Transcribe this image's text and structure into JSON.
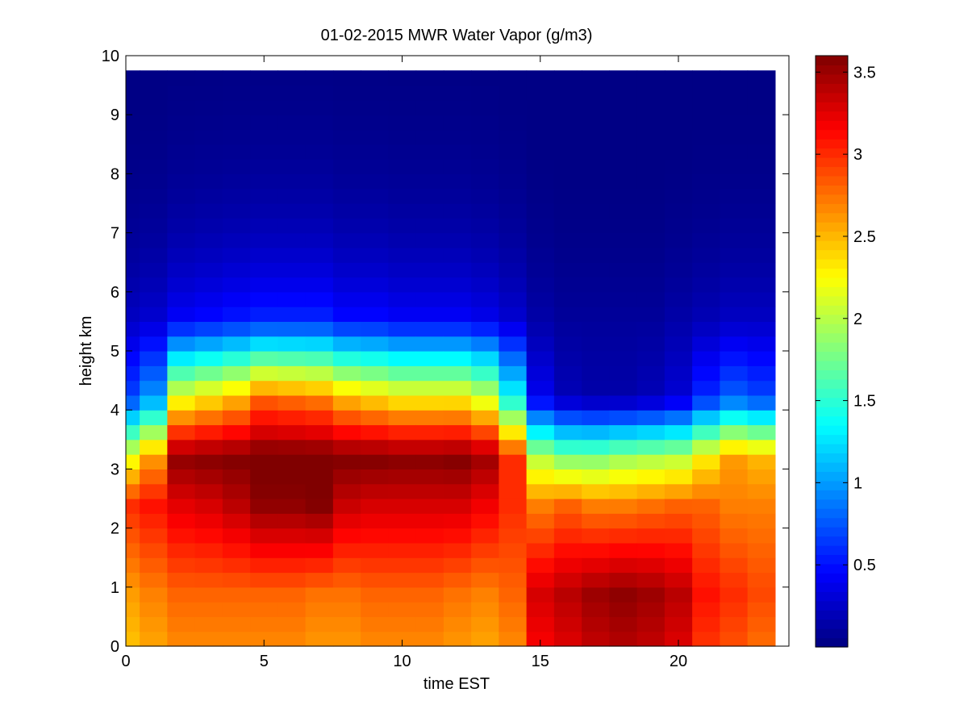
{
  "chart_data": {
    "type": "heatmap",
    "title": "01-02-2015 MWR Water Vapor (g/m3)",
    "xlabel": "time EST",
    "ylabel": "height km",
    "xlim": [
      0,
      24
    ],
    "ylim": [
      0,
      10
    ],
    "x_ticks": [
      "0",
      "5",
      "10",
      "15",
      "20"
    ],
    "y_ticks": [
      "0",
      "1",
      "2",
      "3",
      "4",
      "5",
      "6",
      "7",
      "8",
      "9",
      "10"
    ],
    "colorbar": {
      "colormap": "jet",
      "range": [
        0,
        3.6
      ],
      "tick_values": [
        0.5,
        1,
        1.5,
        2,
        2.5,
        3,
        3.5
      ],
      "tick_labels": [
        "0.5",
        "1",
        "1.5",
        "2",
        "2.5",
        "3",
        "3.5"
      ]
    },
    "hours": [
      0,
      1,
      2,
      3,
      4,
      5,
      6,
      7,
      8,
      9,
      10,
      11,
      12,
      13,
      14,
      15,
      16,
      17,
      18,
      19,
      20,
      21,
      22,
      23
    ],
    "x_cell_start": 0,
    "x_cell_end": 23.5,
    "height_start": 0,
    "height_top": 9.75,
    "height_step": 0.25,
    "hours_profile_anchors": [
      [
        0,
        2.6,
        3.0,
        2.2,
        0.7,
        0.25
      ],
      [
        1,
        2.7,
        3.1,
        2.6,
        1.0,
        0.3
      ],
      [
        2,
        2.8,
        3.25,
        3.55,
        2.2,
        0.45
      ],
      [
        3,
        2.8,
        3.3,
        3.58,
        2.35,
        0.5
      ],
      [
        4,
        2.8,
        3.4,
        3.6,
        2.5,
        0.55
      ],
      [
        5,
        2.8,
        3.55,
        3.66,
        2.8,
        0.6
      ],
      [
        6,
        2.8,
        3.55,
        3.66,
        2.75,
        0.6
      ],
      [
        7,
        2.75,
        3.6,
        3.65,
        2.7,
        0.6
      ],
      [
        8,
        2.75,
        3.35,
        3.6,
        2.5,
        0.5
      ],
      [
        9,
        2.8,
        3.3,
        3.6,
        2.4,
        0.5
      ],
      [
        10,
        2.8,
        3.3,
        3.58,
        2.3,
        0.45
      ],
      [
        11,
        2.8,
        3.3,
        3.58,
        2.3,
        0.45
      ],
      [
        12,
        2.75,
        3.3,
        3.6,
        2.3,
        0.45
      ],
      [
        13,
        2.7,
        3.2,
        3.5,
        2.1,
        0.4
      ],
      [
        14,
        2.8,
        3.0,
        3.0,
        1.4,
        0.3
      ],
      [
        15,
        3.3,
        2.7,
        2.0,
        0.4,
        0.15
      ],
      [
        16,
        3.4,
        2.8,
        1.8,
        0.2,
        0.1
      ],
      [
        17,
        3.5,
        2.7,
        1.8,
        0.15,
        0.1
      ],
      [
        18,
        3.55,
        2.7,
        1.9,
        0.15,
        0.1
      ],
      [
        19,
        3.5,
        2.75,
        1.95,
        0.2,
        0.1
      ],
      [
        20,
        3.4,
        2.8,
        2.0,
        0.3,
        0.15
      ],
      [
        21,
        3.1,
        2.8,
        2.3,
        0.6,
        0.2
      ],
      [
        22,
        3.0,
        2.7,
        2.6,
        0.8,
        0.25
      ],
      [
        23,
        2.9,
        2.7,
        2.5,
        0.7,
        0.25
      ]
    ],
    "profile_anchor_heights_km": [
      0.9,
      2.4,
      3.2,
      4.2,
      5.5
    ]
  }
}
